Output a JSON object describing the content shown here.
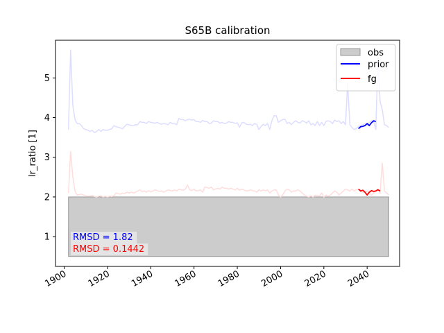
{
  "chart_data": {
    "type": "line",
    "title": "S65B calibration",
    "xlabel": "",
    "ylabel": "lr_ratio [1]",
    "xlim": [
      1896,
      2055
    ],
    "ylim": [
      0.25,
      5.95
    ],
    "xticks": [
      1900,
      1920,
      1940,
      1960,
      1980,
      2000,
      2020,
      2040
    ],
    "yticks": [
      1,
      2,
      3,
      4,
      5
    ],
    "grid": false,
    "legend_position": "top-right",
    "obs_band": {
      "name": "obs",
      "x": [
        1902,
        2050
      ],
      "y": [
        0.5,
        2.0
      ],
      "color": "#cccccc",
      "edge": "#999999"
    },
    "series": [
      {
        "name": "prior",
        "color": "#0000ff",
        "faded_color": "#ddddff",
        "x": [
          1902,
          1903,
          1904,
          1905,
          1906,
          1907,
          1908,
          1909,
          1910,
          1911,
          1912,
          1913,
          1914,
          1915,
          1916,
          1917,
          1918,
          1919,
          1920,
          1921,
          1922,
          1923,
          1924,
          1925,
          1926,
          1927,
          1928,
          1929,
          1930,
          1931,
          1932,
          1933,
          1934,
          1935,
          1936,
          1937,
          1938,
          1939,
          1940,
          1941,
          1942,
          1943,
          1944,
          1945,
          1946,
          1947,
          1948,
          1949,
          1950,
          1951,
          1952,
          1953,
          1954,
          1955,
          1956,
          1957,
          1958,
          1959,
          1960,
          1961,
          1962,
          1963,
          1964,
          1965,
          1966,
          1967,
          1968,
          1969,
          1970,
          1971,
          1972,
          1973,
          1974,
          1975,
          1976,
          1977,
          1978,
          1979,
          1980,
          1981,
          1982,
          1983,
          1984,
          1985,
          1986,
          1987,
          1988,
          1989,
          1990,
          1991,
          1992,
          1993,
          1994,
          1995,
          1996,
          1997,
          1998,
          1999,
          2000,
          2001,
          2002,
          2003,
          2004,
          2005,
          2006,
          2007,
          2008,
          2009,
          2010,
          2011,
          2012,
          2013,
          2014,
          2015,
          2016,
          2017,
          2018,
          2019,
          2020,
          2021,
          2022,
          2023,
          2024,
          2025,
          2026,
          2027,
          2028,
          2029,
          2030,
          2031,
          2032,
          2033,
          2034,
          2035,
          2036,
          2037,
          2038,
          2039,
          2040,
          2041,
          2042,
          2043,
          2044,
          2045,
          2046,
          2047,
          2048,
          2049,
          2050
        ],
        "y": [
          3.7,
          5.7,
          4.3,
          3.95,
          3.85,
          3.85,
          3.8,
          3.72,
          3.7,
          3.68,
          3.65,
          3.68,
          3.62,
          3.65,
          3.7,
          3.65,
          3.7,
          3.68,
          3.68,
          3.7,
          3.72,
          3.8,
          3.77,
          3.76,
          3.74,
          3.72,
          3.78,
          3.83,
          3.82,
          3.8,
          3.8,
          3.82,
          3.82,
          3.9,
          3.88,
          3.88,
          3.85,
          3.9,
          3.88,
          3.87,
          3.86,
          3.88,
          3.85,
          3.83,
          3.85,
          3.84,
          3.82,
          3.88,
          3.85,
          3.85,
          3.82,
          3.98,
          3.95,
          3.95,
          3.92,
          3.95,
          3.96,
          3.94,
          3.95,
          3.9,
          3.9,
          3.88,
          3.93,
          3.9,
          3.9,
          3.85,
          3.86,
          3.92,
          3.9,
          3.9,
          3.86,
          3.88,
          3.85,
          3.86,
          3.9,
          3.88,
          3.88,
          3.85,
          3.87,
          3.76,
          3.86,
          3.88,
          3.84,
          3.82,
          3.83,
          3.8,
          3.85,
          3.83,
          3.7,
          3.78,
          3.83,
          3.8,
          3.85,
          3.7,
          3.92,
          4.05,
          4.05,
          3.88,
          3.92,
          3.95,
          3.96,
          3.85,
          3.88,
          3.82,
          3.88,
          3.92,
          3.88,
          3.86,
          3.92,
          3.9,
          3.86,
          3.92,
          3.82,
          3.85,
          3.8,
          3.9,
          3.8,
          3.88,
          3.8,
          3.9,
          3.92,
          3.9,
          3.85,
          3.94,
          3.9,
          3.92,
          3.85,
          3.9,
          3.82,
          4.85,
          3.82,
          3.75,
          3.7,
          3.72,
          3.78,
          3.8,
          3.82,
          3.85,
          3.8,
          3.88,
          3.92,
          3.9,
          3.7,
          5.5,
          4.4,
          4.2,
          3.82,
          3.8,
          3.75
        ],
        "highlight_x": [
          2036,
          2037,
          2038,
          2039,
          2040,
          2041,
          2042,
          2043,
          2044
        ],
        "highlight_y": [
          3.72,
          3.77,
          3.78,
          3.8,
          3.85,
          3.8,
          3.87,
          3.92,
          3.9
        ]
      },
      {
        "name": "fg",
        "color": "#ff0000",
        "faded_color": "#ffdddd",
        "x": [
          1902,
          1903,
          1904,
          1905,
          1906,
          1907,
          1908,
          1909,
          1910,
          1911,
          1912,
          1913,
          1914,
          1915,
          1916,
          1917,
          1918,
          1919,
          1920,
          1921,
          1922,
          1923,
          1924,
          1925,
          1926,
          1927,
          1928,
          1929,
          1930,
          1931,
          1932,
          1933,
          1934,
          1935,
          1936,
          1937,
          1938,
          1939,
          1940,
          1941,
          1942,
          1943,
          1944,
          1945,
          1946,
          1947,
          1948,
          1949,
          1950,
          1951,
          1952,
          1953,
          1954,
          1955,
          1956,
          1957,
          1958,
          1959,
          1960,
          1961,
          1962,
          1963,
          1964,
          1965,
          1966,
          1967,
          1968,
          1969,
          1970,
          1971,
          1972,
          1973,
          1974,
          1975,
          1976,
          1977,
          1978,
          1979,
          1980,
          1981,
          1982,
          1983,
          1984,
          1985,
          1986,
          1987,
          1988,
          1989,
          1990,
          1991,
          1992,
          1993,
          1994,
          1995,
          1996,
          1997,
          1998,
          1999,
          2000,
          2001,
          2002,
          2003,
          2004,
          2005,
          2006,
          2007,
          2008,
          2009,
          2010,
          2011,
          2012,
          2013,
          2014,
          2015,
          2016,
          2017,
          2018,
          2019,
          2020,
          2021,
          2022,
          2023,
          2024,
          2025,
          2026,
          2027,
          2028,
          2029,
          2030,
          2031,
          2032,
          2033,
          2034,
          2035,
          2036,
          2037,
          2038,
          2039,
          2040,
          2041,
          2042,
          2043,
          2044,
          2045,
          2046,
          2047,
          2048,
          2049,
          2050
        ],
        "y": [
          2.1,
          3.15,
          2.5,
          2.15,
          2.05,
          2.06,
          2.07,
          2.05,
          2.03,
          2.02,
          2.02,
          2.04,
          2.01,
          2.0,
          2.02,
          2.03,
          2.0,
          2.02,
          2.0,
          2.02,
          2.01,
          2.03,
          2.1,
          2.08,
          2.07,
          2.1,
          2.08,
          2.12,
          2.1,
          2.12,
          2.1,
          2.12,
          2.15,
          2.18,
          2.13,
          2.15,
          2.12,
          2.16,
          2.13,
          2.15,
          2.18,
          2.16,
          2.14,
          2.15,
          2.12,
          2.15,
          2.18,
          2.16,
          2.15,
          2.18,
          2.15,
          2.2,
          2.18,
          2.17,
          2.2,
          2.3,
          2.18,
          2.16,
          2.2,
          2.15,
          2.16,
          2.18,
          2.12,
          2.25,
          2.24,
          2.22,
          2.25,
          2.18,
          2.2,
          2.22,
          2.2,
          2.25,
          2.22,
          2.22,
          2.2,
          2.22,
          2.2,
          2.18,
          2.22,
          2.17,
          2.2,
          2.18,
          2.15,
          2.15,
          2.18,
          2.16,
          2.15,
          2.12,
          2.18,
          2.15,
          2.18,
          2.15,
          2.18,
          2.1,
          2.15,
          2.18,
          2.18,
          2.05,
          2.0,
          2.05,
          2.15,
          2.2,
          2.18,
          2.12,
          2.15,
          2.15,
          2.18,
          2.15,
          2.1,
          2.05,
          2.02,
          2.0,
          2.03,
          2.0,
          2.05,
          2.03,
          2.02,
          2.1,
          2.0,
          2.05,
          2.02,
          2.05,
          2.1,
          2.15,
          2.12,
          2.05,
          2.1,
          2.15,
          2.2,
          2.18,
          2.15,
          2.2,
          2.15,
          2.18,
          2.2,
          2.15,
          2.12,
          2.1,
          2.15,
          2.1,
          2.05,
          2.1,
          2.15,
          2.2,
          2.1,
          2.85,
          2.15,
          2.1,
          2.05
        ],
        "highlight_x": [
          2036,
          2037,
          2038,
          2039,
          2040,
          2041,
          2042,
          2043,
          2044,
          2045,
          2046
        ],
        "highlight_y": [
          2.2,
          2.15,
          2.17,
          2.12,
          2.05,
          2.12,
          2.16,
          2.14,
          2.15,
          2.18,
          2.15
        ]
      }
    ],
    "annotations": [
      {
        "text": "RMSD = 1.82",
        "color": "#0000ff"
      },
      {
        "text": "RMSD = 0.1442",
        "color": "#ff0000"
      }
    ]
  }
}
